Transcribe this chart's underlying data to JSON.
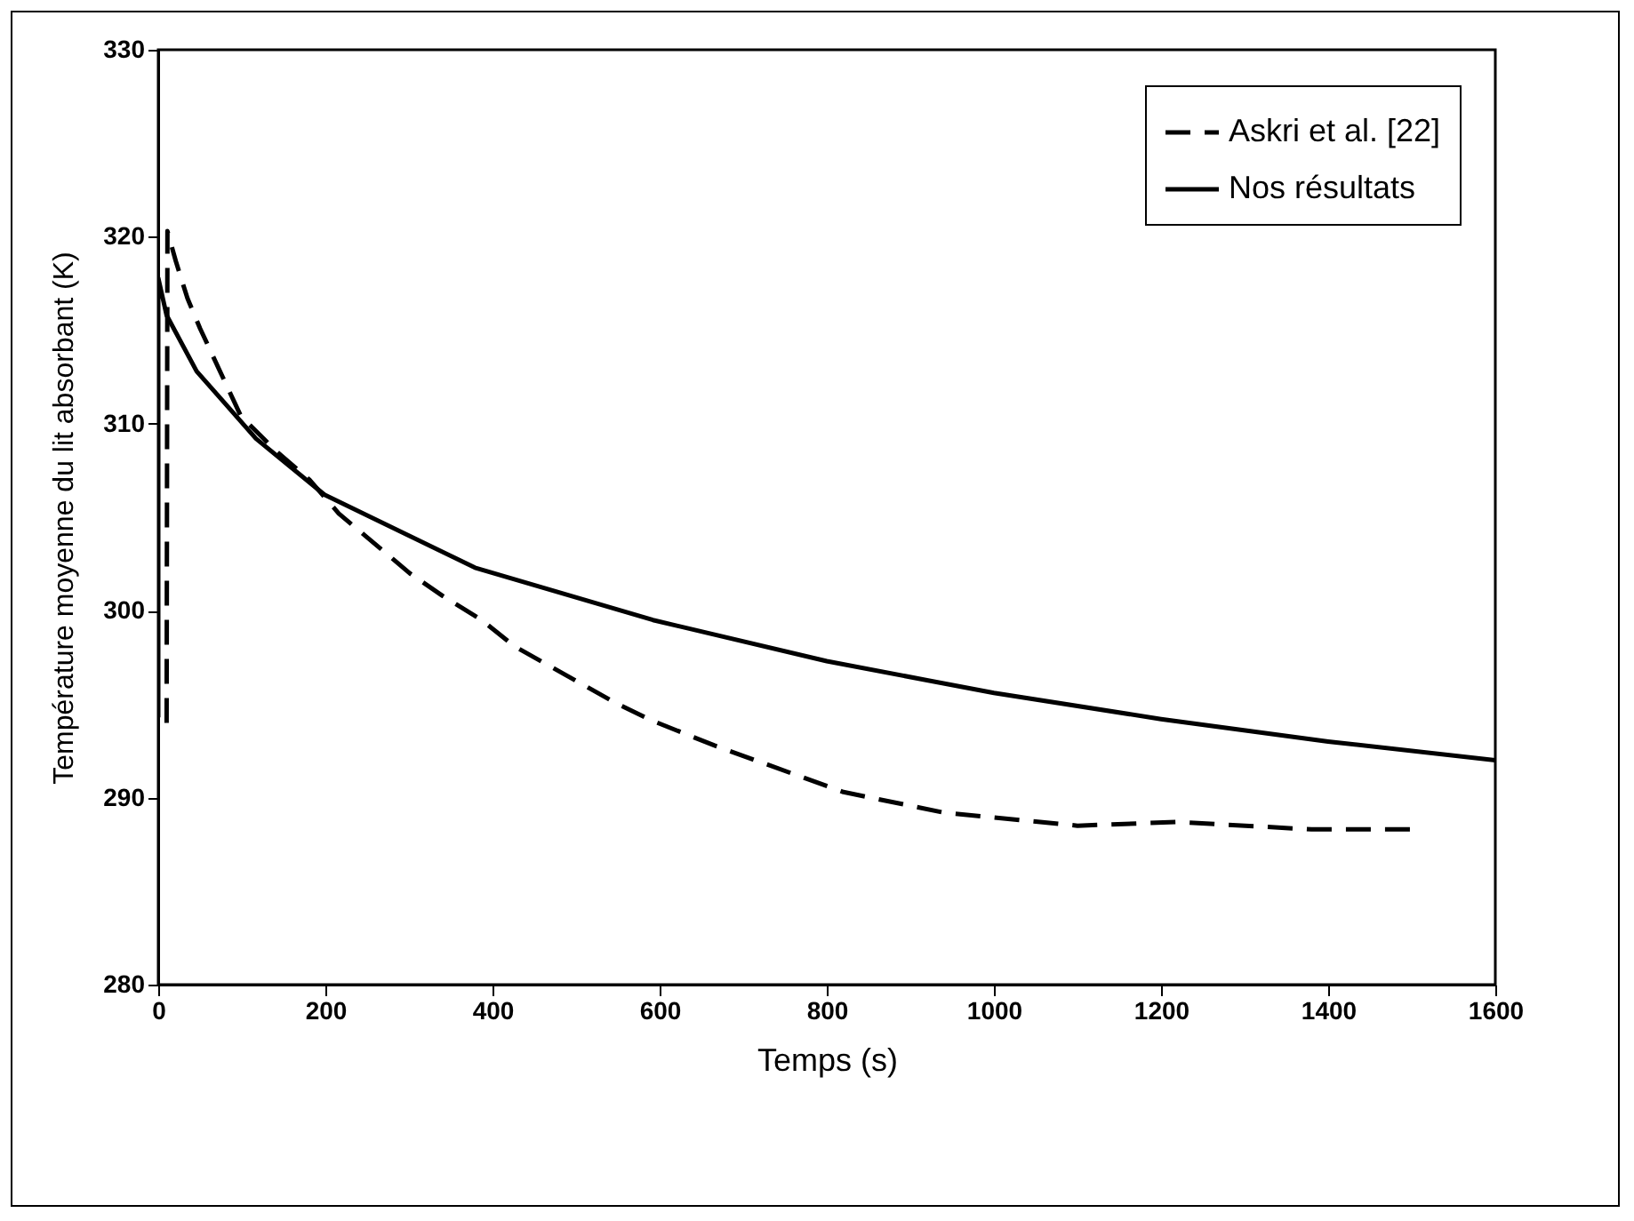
{
  "chart_data": {
    "type": "line",
    "xlabel": "Temps (s)",
    "ylabel": "Température moyenne du lit absorbant (K)",
    "xlim": [
      0,
      1600
    ],
    "xticks": [
      0,
      200,
      400,
      600,
      800,
      {
        "value": 1000,
        "label": "1000"
      },
      {
        "value": 1200,
        "label": "1200"
      },
      {
        "value": 1400,
        "label": "1400"
      },
      {
        "value": 1600,
        "label": "1600"
      }
    ],
    "ylim": [
      280,
      330
    ],
    "yticks": [
      280,
      290,
      300,
      310,
      320,
      330
    ],
    "grid": false,
    "legend": "top right",
    "marker": "none",
    "series": [
      {
        "name": "Askri et al. [22]",
        "color": "#000000",
        "line_style": "dashed",
        "x": [
          10,
          11,
          21,
          35,
          50,
          99,
          142,
          181,
          216,
          301,
          340,
          387,
          426,
          550,
          592,
          665,
          820,
          940,
          1100,
          1220,
          1380,
          1500
        ],
        "values": [
          294,
          320.3,
          318.7,
          316.7,
          315.1,
          310.4,
          308.5,
          307,
          305.2,
          302,
          300.8,
          299.5,
          298.1,
          295,
          294.1,
          292.8,
          290.3,
          289.2,
          288.5,
          288.7,
          288.3,
          288.3
        ]
      },
      {
        "name": "Nos résultats",
        "color": "#000000",
        "line_style": "solid",
        "x": [
          0,
          0,
          10,
          46,
          117,
          199,
          379,
          592,
          800,
          1000,
          1200,
          1400,
          1600
        ],
        "values": [
          294.3,
          317.8,
          315.8,
          312.8,
          309.2,
          306.2,
          302.3,
          299.5,
          297.3,
          295.6,
          294.2,
          293,
          292
        ]
      }
    ]
  }
}
